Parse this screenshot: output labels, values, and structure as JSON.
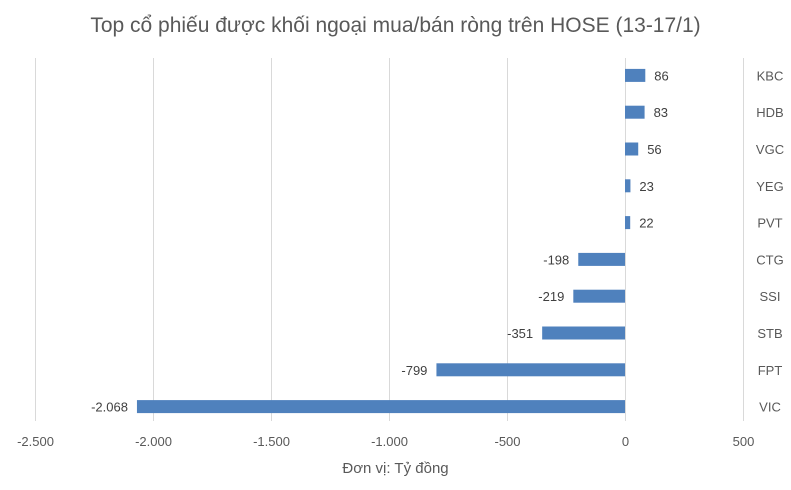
{
  "chart_data": {
    "type": "bar",
    "orientation": "horizontal",
    "title": "Top cổ phiếu được khối ngoại mua/bán ròng trên HOSE (13-17/1)",
    "xlabel": "Đơn vị: Tỷ đồng",
    "ylabel": "",
    "categories": [
      "KBC",
      "HDB",
      "VGC",
      "YEG",
      "PVT",
      "CTG",
      "SSI",
      "STB",
      "FPT",
      "VIC"
    ],
    "values": [
      86,
      83,
      56,
      23,
      22,
      -198,
      -219,
      -351,
      -799,
      -2068
    ],
    "data_labels": [
      "86",
      "83",
      "56",
      "23",
      "22",
      "-198",
      "-219",
      "-351",
      "-799",
      "-2.068"
    ],
    "xlim": [
      -2500,
      500
    ],
    "x_ticks": [
      -2500,
      -2000,
      -1500,
      -1000,
      -500,
      0,
      500
    ],
    "x_tick_labels": [
      "-2.500",
      "-2.000",
      "-1.500",
      "-1.000",
      "-500",
      "0",
      "500"
    ],
    "category_labels_position": "right",
    "grid": "vertical",
    "legend": "none",
    "colors": {
      "bar": "#4f81bd",
      "grid": "#d9d9d9",
      "text": "#595959"
    }
  }
}
